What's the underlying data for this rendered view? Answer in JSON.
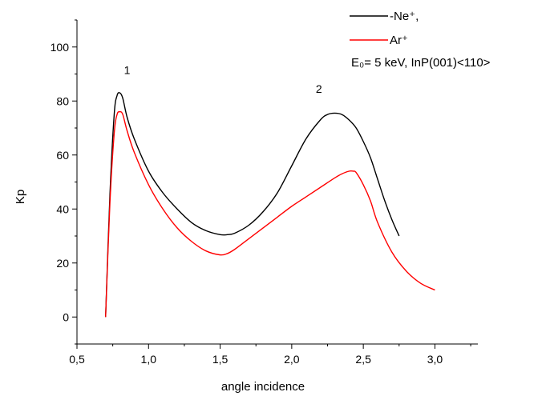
{
  "chart_data": {
    "type": "line",
    "xlabel": "angle incidence",
    "ylabel": "Kp",
    "xlim": [
      0.5,
      3.3
    ],
    "ylim": [
      -10,
      110
    ],
    "xticks": [
      0.5,
      1.0,
      1.5,
      2.0,
      2.5,
      3.0
    ],
    "xtick_labels": [
      "0,5",
      "1,0",
      "1,5",
      "2,0",
      "2,5",
      "3,0"
    ],
    "yticks": [
      0,
      20,
      40,
      60,
      80,
      100
    ],
    "ytick_labels": [
      "0",
      "20",
      "40",
      "60",
      "80",
      "100"
    ],
    "grid": false,
    "legend_position": "top-right",
    "legend_note": "E₀= 5 keV, InP(001)<110>",
    "annotations": [
      {
        "text": "1",
        "x": 0.85,
        "y": 90
      },
      {
        "text": "2",
        "x": 2.19,
        "y": 83
      }
    ],
    "series": [
      {
        "name": "-Ne⁺,",
        "color": "#000000",
        "x": [
          0.7,
          0.73,
          0.76,
          0.78,
          0.8,
          0.82,
          0.85,
          0.9,
          1.0,
          1.1,
          1.2,
          1.3,
          1.4,
          1.5,
          1.55,
          1.6,
          1.7,
          1.8,
          1.9,
          2.0,
          2.1,
          2.2,
          2.25,
          2.3,
          2.35,
          2.4,
          2.45,
          2.5,
          2.55,
          2.6,
          2.65,
          2.7,
          2.75
        ],
        "y": [
          0,
          45,
          75,
          82,
          83,
          81,
          74,
          66,
          54,
          46,
          40,
          35,
          32,
          30.5,
          30.5,
          31,
          34,
          39,
          46,
          56,
          66,
          73,
          75,
          75.5,
          75,
          73,
          70,
          65,
          59,
          51,
          43,
          36,
          30
        ]
      },
      {
        "name": "Ar⁺",
        "color": "#ff0000",
        "x": [
          0.7,
          0.73,
          0.76,
          0.78,
          0.8,
          0.82,
          0.85,
          0.9,
          1.0,
          1.1,
          1.2,
          1.3,
          1.4,
          1.5,
          1.55,
          1.6,
          1.7,
          1.8,
          1.9,
          2.0,
          2.1,
          2.2,
          2.3,
          2.35,
          2.4,
          2.43,
          2.45,
          2.5,
          2.55,
          2.6,
          2.7,
          2.8,
          2.9,
          3.0
        ],
        "y": [
          0,
          42,
          68,
          75,
          76,
          75,
          69,
          61,
          49,
          40,
          33,
          28,
          24.5,
          23,
          23.5,
          25,
          29,
          33,
          37,
          41,
          44.5,
          48,
          51.5,
          53,
          54,
          54,
          53.5,
          49,
          43,
          35,
          24,
          17,
          12.5,
          10
        ]
      }
    ]
  }
}
